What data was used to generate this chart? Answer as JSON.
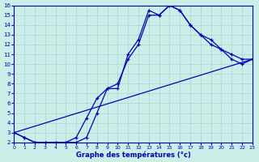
{
  "xlabel": "Graphe des températures (°c)",
  "background_color": "#cceee8",
  "grid_color": "#aad4ce",
  "line_color": "#0000bb",
  "xmin": 0,
  "xmax": 23,
  "ymin": 2,
  "ymax": 16,
  "line1_x": [
    0,
    1,
    2,
    3,
    4,
    5,
    6,
    7,
    8,
    9,
    10,
    11,
    12,
    13,
    14,
    15,
    16,
    17,
    18,
    19,
    20,
    21,
    22,
    23
  ],
  "line1_y": [
    3.0,
    2.5,
    2.0,
    2.0,
    2.0,
    2.0,
    2.0,
    2.5,
    5.0,
    7.5,
    8.0,
    10.5,
    12.0,
    15.0,
    15.0,
    16.0,
    15.5,
    14.0,
    13.0,
    12.0,
    11.5,
    11.0,
    10.5,
    10.5
  ],
  "line2_x": [
    0,
    1,
    2,
    3,
    4,
    5,
    6,
    7,
    8,
    9,
    10,
    11,
    12,
    13,
    14,
    15,
    16,
    17,
    18,
    19,
    20,
    21,
    22,
    23
  ],
  "line2_y": [
    3.0,
    2.5,
    2.0,
    2.0,
    2.0,
    2.0,
    2.5,
    4.5,
    6.5,
    7.5,
    7.5,
    11.0,
    12.5,
    15.5,
    15.0,
    16.0,
    15.5,
    14.0,
    13.0,
    12.5,
    11.5,
    10.5,
    10.0,
    10.5
  ],
  "line3_x": [
    0,
    23
  ],
  "line3_y": [
    3.0,
    10.5
  ]
}
